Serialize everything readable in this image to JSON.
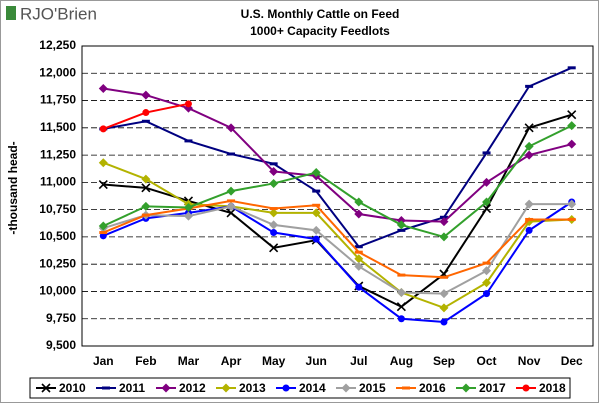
{
  "logo": "RJO'Brien",
  "chart_data": {
    "type": "line",
    "title": "U.S. Monthly Cattle on Feed",
    "subtitle": "1000+ Capacity Feedlots",
    "y_label": "-thousand head-",
    "categories": [
      "Jan",
      "Feb",
      "Mar",
      "Apr",
      "May",
      "Jun",
      "Jul",
      "Aug",
      "Sep",
      "Oct",
      "Nov",
      "Dec"
    ],
    "series": [
      {
        "name": "2010",
        "color": "#000000",
        "marker": "x",
        "values": [
          10980,
          10950,
          10830,
          10720,
          10400,
          10470,
          10050,
          9860,
          10160,
          10760,
          11500,
          11620
        ]
      },
      {
        "name": "2011",
        "color": "#000080",
        "marker": "dash",
        "values": [
          11490,
          11560,
          11380,
          11260,
          11170,
          10920,
          10410,
          10560,
          10680,
          11270,
          11880,
          12050
        ]
      },
      {
        "name": "2012",
        "color": "#800080",
        "marker": "diamond",
        "values": [
          11860,
          11800,
          11680,
          11500,
          11100,
          11060,
          10710,
          10650,
          10640,
          11000,
          11250,
          11350
        ]
      },
      {
        "name": "2013",
        "color": "#b3b300",
        "marker": "diamond",
        "values": [
          11180,
          11030,
          10800,
          10780,
          10720,
          10720,
          10300,
          9990,
          9850,
          10080,
          10640,
          10660
        ]
      },
      {
        "name": "2014",
        "color": "#0000ff",
        "marker": "circle",
        "values": [
          10510,
          10670,
          10720,
          10780,
          10540,
          10480,
          10040,
          9750,
          9720,
          9980,
          10560,
          10820
        ]
      },
      {
        "name": "2015",
        "color": "#a0a0a0",
        "marker": "diamond",
        "values": [
          10580,
          10700,
          10690,
          10780,
          10610,
          10560,
          10230,
          9990,
          9980,
          10190,
          10800,
          10800
        ]
      },
      {
        "name": "2016",
        "color": "#ff6600",
        "marker": "dash",
        "values": [
          10540,
          10700,
          10760,
          10830,
          10760,
          10790,
          10360,
          10150,
          10130,
          10260,
          10660,
          10660
        ]
      },
      {
        "name": "2017",
        "color": "#33a02c",
        "marker": "diamond",
        "values": [
          10600,
          10780,
          10770,
          10920,
          10990,
          11090,
          10820,
          10610,
          10500,
          10820,
          11330,
          11520
        ]
      },
      {
        "name": "2018",
        "color": "#ff0000",
        "marker": "circle",
        "values": [
          11490,
          11640,
          11720,
          null,
          null,
          null,
          null,
          null,
          null,
          null,
          null,
          null
        ]
      }
    ],
    "ylim": [
      9500,
      12250
    ],
    "yticks": [
      {
        "value": 9500,
        "label": "9,500"
      },
      {
        "value": 9750,
        "label": "9,750"
      },
      {
        "value": 10000,
        "label": "10,000"
      },
      {
        "value": 10250,
        "label": "10,250"
      },
      {
        "value": 10500,
        "label": "10,500"
      },
      {
        "value": 10750,
        "label": "10,750"
      },
      {
        "value": 11000,
        "label": "11,000"
      },
      {
        "value": 11250,
        "label": "11,250"
      },
      {
        "value": 11500,
        "label": "11,500"
      },
      {
        "value": 11750,
        "label": "11,750"
      },
      {
        "value": 12000,
        "label": "12,000"
      },
      {
        "value": 12250,
        "label": "12,250"
      }
    ],
    "grid": true,
    "legend": "bottom"
  }
}
